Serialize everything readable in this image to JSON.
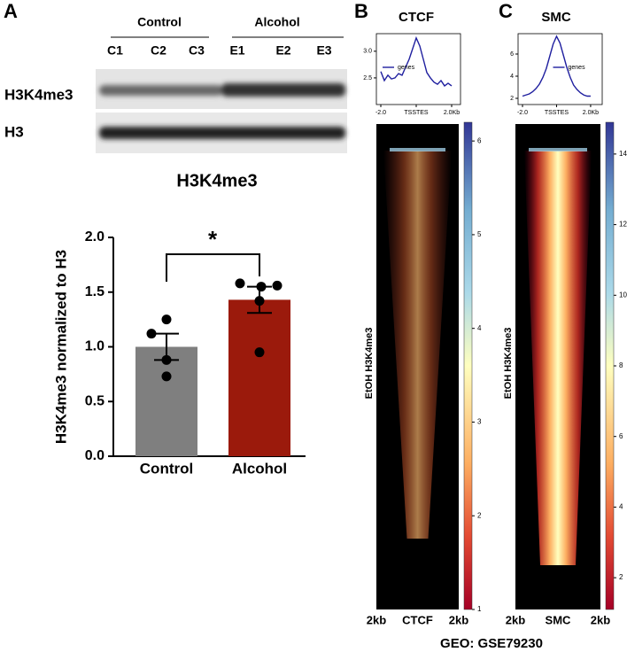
{
  "panel_labels": [
    "A",
    "B",
    "C"
  ],
  "blot": {
    "groups": [
      "Control",
      "Alcohol"
    ],
    "lanes": [
      "C1",
      "C2",
      "C3",
      "E1",
      "E2",
      "E3"
    ],
    "rows": [
      "H3K4me3",
      "H3"
    ]
  },
  "footer": "GEO: GSE79230",
  "chart_data": [
    {
      "type": "bar",
      "title": "H3K4me3",
      "y_label": "H3K4me3 normalized to H3",
      "categories": [
        "Control",
        "Alcohol"
      ],
      "values": [
        1.0,
        1.43
      ],
      "errors": [
        0.12,
        0.12
      ],
      "colors": [
        "#7f7f7f",
        "#9b1a0c"
      ],
      "points": [
        [
          1.25,
          1.12,
          0.88,
          0.73
        ],
        [
          1.58,
          1.55,
          1.56,
          1.42,
          0.95
        ]
      ],
      "ylim": [
        0,
        2.0
      ],
      "yticks": [
        {
          "value": 0,
          "label": "0.0"
        },
        {
          "value": 0.5,
          "label": "0.5"
        },
        {
          "value": 1.0,
          "label": "1.0"
        },
        {
          "value": 1.5,
          "label": "1.5"
        },
        {
          "value": 2.0,
          "label": "2.0"
        }
      ],
      "annotation": "*"
    },
    {
      "type": "line",
      "title": "CTCF",
      "x": [
        -2.0,
        -1.8,
        -1.6,
        -1.4,
        -1.2,
        -1.0,
        -0.8,
        -0.6,
        -0.4,
        -0.2,
        0.0,
        0.2,
        0.4,
        0.6,
        0.8,
        1.0,
        1.2,
        1.4,
        1.6,
        1.8,
        2.0
      ],
      "series": [
        {
          "name": "genes",
          "color": "#1f1f9f",
          "values": [
            2.62,
            2.45,
            2.55,
            2.48,
            2.5,
            2.58,
            2.55,
            2.7,
            2.85,
            3.05,
            3.25,
            3.1,
            2.85,
            2.6,
            2.5,
            2.42,
            2.38,
            2.45,
            2.35,
            2.4,
            2.35
          ]
        }
      ],
      "xlim": [
        -2.25,
        2.5
      ],
      "ylim": [
        2.0,
        3.33
      ],
      "xticks": [
        {
          "value": -2.0,
          "label": "-2.0"
        },
        {
          "value": 0,
          "label": "TSSTES"
        },
        {
          "value": 2.0,
          "label": "2.0Kb"
        }
      ],
      "yticks": [
        {
          "value": 2.5,
          "label": "2.5"
        },
        {
          "value": 3.0,
          "label": "3.0"
        }
      ],
      "legend": "left"
    },
    {
      "type": "heatmap",
      "y_label": "EtOH H3K4me3",
      "x_labels": [
        "2kb",
        "CTCF",
        "2kb"
      ],
      "clim": [
        1,
        6.2
      ],
      "cticks": [
        1,
        2,
        3,
        4,
        5,
        6
      ],
      "style": "diffuse"
    },
    {
      "type": "line",
      "title": "SMC",
      "x": [
        -2.0,
        -1.8,
        -1.6,
        -1.4,
        -1.2,
        -1.0,
        -0.8,
        -0.6,
        -0.4,
        -0.2,
        0.0,
        0.2,
        0.4,
        0.6,
        0.8,
        1.0,
        1.2,
        1.4,
        1.6,
        1.8,
        2.0
      ],
      "series": [
        {
          "name": "genes",
          "color": "#1f1f9f",
          "values": [
            2.2,
            2.3,
            2.4,
            2.6,
            2.9,
            3.3,
            3.9,
            4.7,
            5.8,
            6.9,
            7.6,
            7.0,
            5.9,
            4.8,
            3.9,
            3.2,
            2.8,
            2.5,
            2.3,
            2.2,
            2.2
          ]
        }
      ],
      "xlim": [
        -2.26,
        2.68
      ],
      "ylim": [
        1.44,
        7.84
      ],
      "xticks": [
        {
          "value": -2.0,
          "label": "-2.0"
        },
        {
          "value": 0,
          "label": "TSSTES"
        },
        {
          "value": 2.0,
          "label": "2.0Kb"
        }
      ],
      "yticks": [
        2,
        4,
        6
      ],
      "legend": "center"
    },
    {
      "type": "heatmap",
      "y_label": "EtOH H3K4me3",
      "x_labels": [
        "2kb",
        "SMC",
        "2kb"
      ],
      "clim": [
        1.1,
        14.9
      ],
      "cticks": [
        2,
        4,
        6,
        8,
        10,
        12,
        14
      ],
      "style": "sharp"
    }
  ]
}
